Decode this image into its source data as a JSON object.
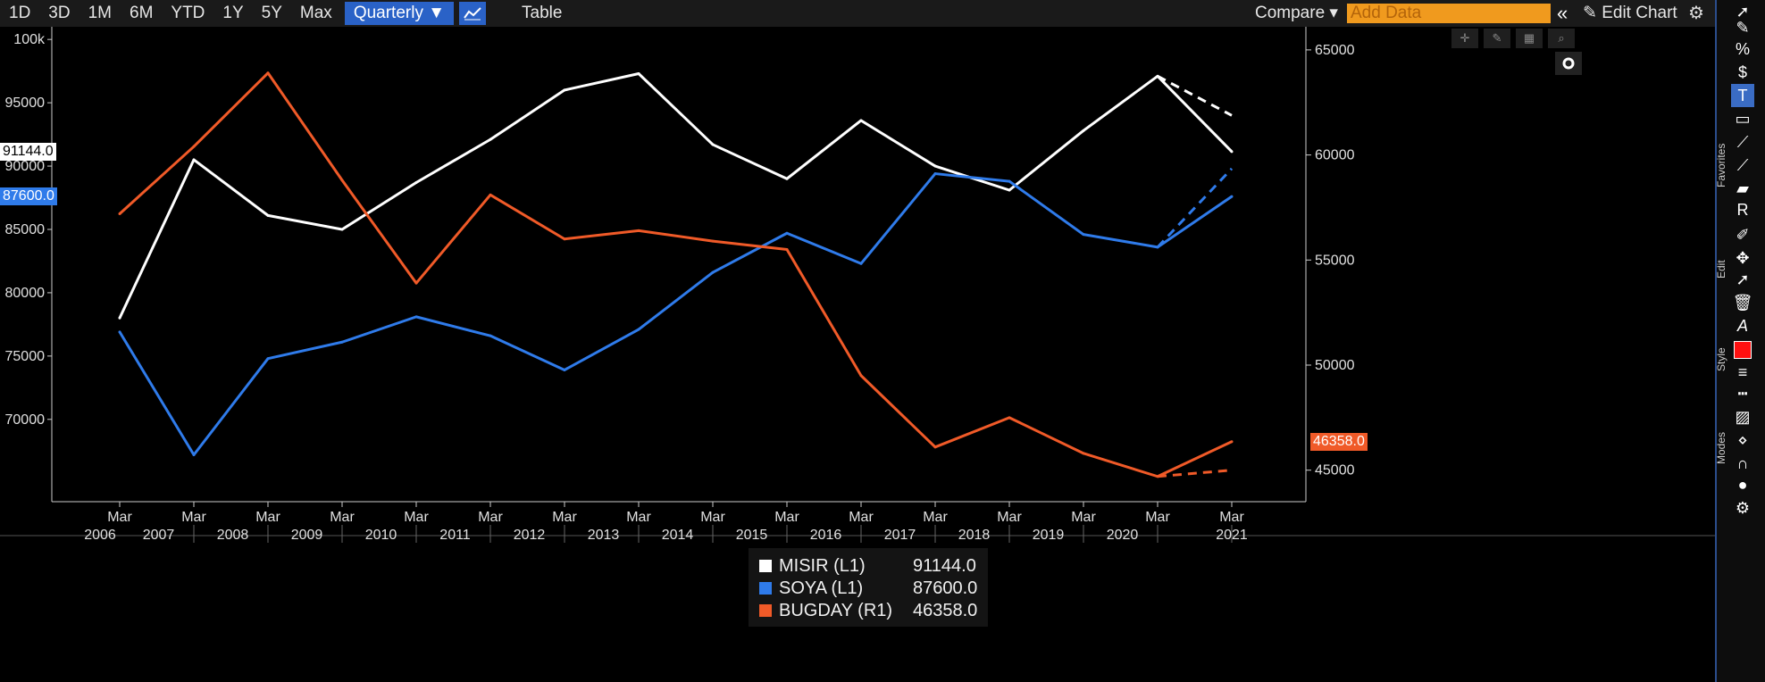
{
  "toolbar": {
    "ranges": [
      "1D",
      "3D",
      "1M",
      "6M",
      "YTD",
      "1Y",
      "5Y",
      "Max"
    ],
    "period": "Quarterly ▼",
    "table_label": "Table",
    "compare_label": "Compare ▾",
    "add_data_placeholder": "Add Data",
    "collapse_glyph": "«",
    "edit_chart_label": "✎ Edit Chart",
    "gear_glyph": "⚙"
  },
  "rail": {
    "labels": [
      "Favorites",
      "Edit",
      "Style",
      "Modes"
    ],
    "colors": {
      "accent": "#2b4d8c",
      "red_swatch": "#ff1010"
    }
  },
  "chart_data": {
    "type": "line",
    "x": [
      "Mar 2006",
      "Mar 2007",
      "Mar 2008",
      "Mar 2009",
      "Mar 2010",
      "Mar 2011",
      "Mar 2012",
      "Mar 2013",
      "Mar 2014",
      "Mar 2015",
      "Mar 2016",
      "Mar 2017",
      "Mar 2018",
      "Mar 2019",
      "Mar 2020",
      "Mar 2021"
    ],
    "x_month_label": "Mar",
    "year_labels": [
      "2006",
      "2007",
      "2008",
      "2009",
      "2010",
      "2011",
      "2012",
      "2013",
      "2014",
      "2015",
      "2016",
      "2017",
      "2018",
      "2019",
      "2020",
      "2021"
    ],
    "y_left": {
      "ticks": [
        "100k",
        "95000",
        "90000",
        "85000",
        "80000",
        "75000",
        "70000"
      ],
      "tick_values": [
        100000,
        95000,
        90000,
        85000,
        80000,
        75000,
        70000
      ],
      "range": [
        63500,
        101000
      ]
    },
    "y_right": {
      "ticks": [
        "65000",
        "60000",
        "55000",
        "50000",
        "45000"
      ],
      "tick_values": [
        65000,
        60000,
        55000,
        50000,
        45000
      ],
      "range": [
        43500,
        66100
      ]
    },
    "series": [
      {
        "name": "MISIR (L1)",
        "axis": "left",
        "color": "#ffffff",
        "values": [
          78000,
          90500,
          86100,
          85000,
          88700,
          92100,
          96000,
          97300,
          91700,
          89000,
          93600,
          90000,
          88100,
          92800,
          97100,
          91144
        ],
        "projection": [
          97100,
          94000
        ]
      },
      {
        "name": "SOYA (L1)",
        "axis": "left",
        "color": "#2f7bea",
        "values": [
          76900,
          67200,
          74800,
          76100,
          78100,
          76600,
          73900,
          77100,
          81600,
          84700,
          82300,
          89400,
          88800,
          84600,
          83600,
          87600
        ],
        "projection": [
          83600,
          89800
        ]
      },
      {
        "name": "BUGDAY (R1)",
        "axis": "right",
        "color": "#f05a28",
        "values": [
          57200,
          60400,
          63900,
          58800,
          53900,
          58100,
          56000,
          56400,
          55900,
          55500,
          49500,
          46100,
          47500,
          45800,
          44700,
          46358
        ],
        "projection": [
          44700,
          45000
        ]
      }
    ],
    "legend": {
      "position": "bottom-center",
      "values": [
        "91144.0",
        "87600.0",
        "46358.0"
      ]
    },
    "last_value_tags": [
      {
        "label": "91144.0",
        "bg": "#ffffff",
        "fg": "#000000"
      },
      {
        "label": "87600.0",
        "bg": "#2f7bea",
        "fg": "#ffffff"
      },
      {
        "label": "46358.0",
        "bg": "#f05a28",
        "fg": "#ffffff"
      }
    ],
    "grid": false
  }
}
